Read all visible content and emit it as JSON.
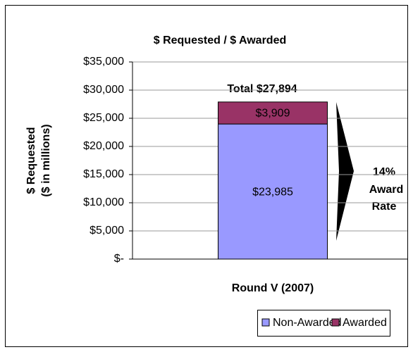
{
  "chart_data": {
    "type": "stacked_bar",
    "title": "$ Requested / $ Awarded",
    "ylabel": [
      "$ Requested",
      "($ in millions)"
    ],
    "categories": [
      "Round V (2007)"
    ],
    "series": [
      {
        "name": "Non-Awarded",
        "color": "#9999ff",
        "values": [
          23985
        ],
        "value_labels": [
          "$23,985"
        ]
      },
      {
        "name": "Awarded",
        "color": "#993366",
        "values": [
          3909
        ],
        "value_labels": [
          "$3,909"
        ]
      }
    ],
    "ylim": [
      0,
      35000
    ],
    "yticks": [
      {
        "value": 0,
        "label": "$-"
      },
      {
        "value": 5000,
        "label": "$5,000"
      },
      {
        "value": 10000,
        "label": "$10,000"
      },
      {
        "value": 15000,
        "label": "$15,000"
      },
      {
        "value": 20000,
        "label": "$20,000"
      },
      {
        "value": 25000,
        "label": "$25,000"
      },
      {
        "value": 30000,
        "label": "$30,000"
      },
      {
        "value": 35000,
        "label": "$35,000"
      }
    ],
    "grid": true,
    "annotations": [
      "Total $27,894",
      "14%",
      "Award",
      "Rate"
    ],
    "legend": "bottom"
  }
}
